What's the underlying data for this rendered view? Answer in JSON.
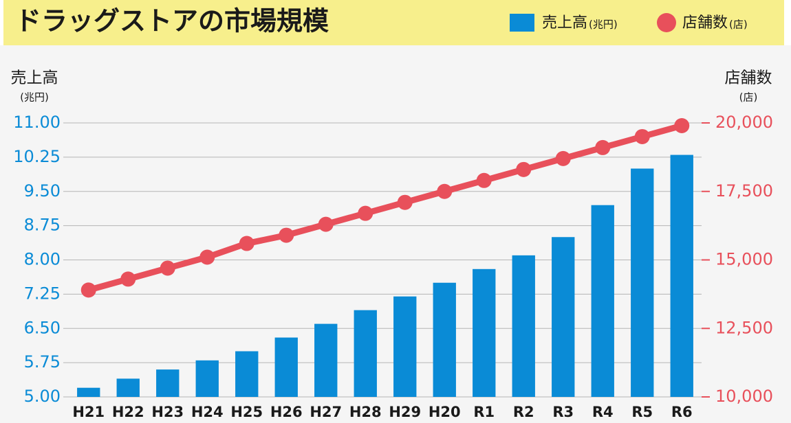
{
  "chart_data": {
    "type": "bar_line",
    "title": "ドラッグストアの市場規模",
    "categories": [
      "H21",
      "H22",
      "H23",
      "H24",
      "H25",
      "H26",
      "H27",
      "H28",
      "H29",
      "H20",
      "R1",
      "R2",
      "R3",
      "R4",
      "R5",
      "R6"
    ],
    "series": [
      {
        "name": "売上高",
        "unit": "(兆円)",
        "type": "bar",
        "color": "#0a8bd6",
        "values": [
          5.2,
          5.4,
          5.6,
          5.8,
          6.0,
          6.3,
          6.6,
          6.9,
          7.2,
          7.5,
          7.8,
          8.1,
          8.5,
          9.2,
          10.0,
          10.3
        ]
      },
      {
        "name": "店舗数",
        "unit": "(店)",
        "type": "line",
        "axis": "y2",
        "color": "#e8505b",
        "values": [
          13900,
          14300,
          14700,
          15100,
          15600,
          15900,
          16300,
          16700,
          17100,
          17500,
          17900,
          18300,
          18700,
          19100,
          19500,
          19900
        ]
      }
    ],
    "ylim": [
      5,
      11
    ],
    "yticks": [
      {
        "value": 5,
        "label": "5.00"
      },
      {
        "value": 5.75,
        "label": "5.75"
      },
      {
        "value": 6.5,
        "label": "6.50"
      },
      {
        "value": 7.25,
        "label": "7.25"
      },
      {
        "value": 8,
        "label": "8.00"
      },
      {
        "value": 8.75,
        "label": "8.75"
      },
      {
        "value": 9.5,
        "label": "9.50"
      },
      {
        "value": 10.25,
        "label": "10.25"
      },
      {
        "value": 11,
        "label": "11.00"
      }
    ],
    "y2lim": [
      10000,
      20000
    ],
    "y2ticks": [
      {
        "value": 10000,
        "label": "10,000"
      },
      {
        "value": 12500,
        "label": "12,500"
      },
      {
        "value": 15000,
        "label": "15,000"
      },
      {
        "value": 17500,
        "label": "17,500"
      },
      {
        "value": 20000,
        "label": "20,000"
      }
    ],
    "grid": true
  }
}
